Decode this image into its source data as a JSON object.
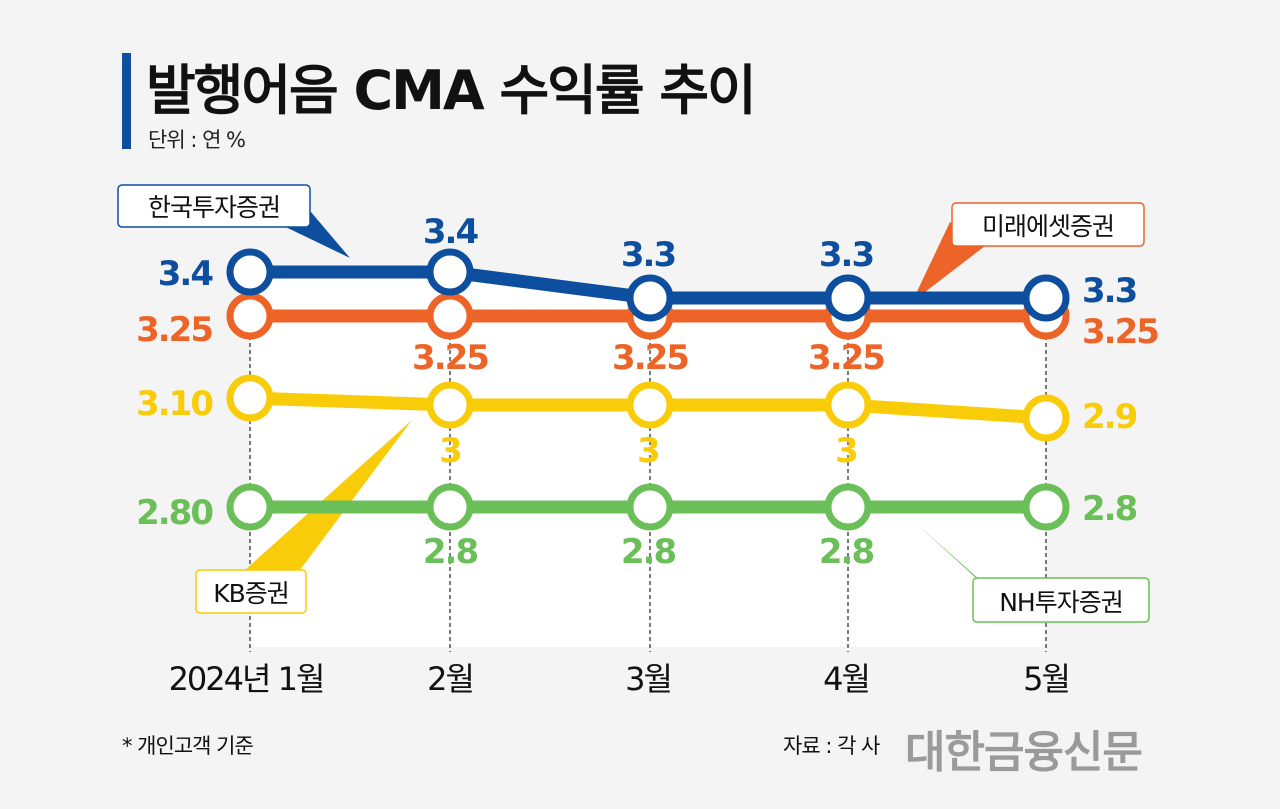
{
  "header": {
    "title": "발행어음 CMA 수익률 추이",
    "unit": "단위 : 연 %"
  },
  "footer": {
    "note": "* 개인고객 기준",
    "source": "자료 : 각 사",
    "logo": "대한금융신문"
  },
  "chart_data": {
    "type": "line",
    "title": "발행어음 CMA 수익률 추이",
    "ylabel": "단위 : 연 %",
    "categories": [
      "2024년 1월",
      "2월",
      "3월",
      "4월",
      "5월"
    ],
    "ylim": [
      2.6,
      3.5
    ],
    "grid": false,
    "series": [
      {
        "name": "한국투자증권",
        "color": "#0d4f9e",
        "values": [
          3.4,
          3.4,
          3.3,
          3.3,
          3.3
        ],
        "labels": [
          "3.4",
          "3.4",
          "3.3",
          "3.3",
          "3.3"
        ]
      },
      {
        "name": "미래에셋증권",
        "color": "#ec6428",
        "values": [
          3.25,
          3.25,
          3.25,
          3.25,
          3.25
        ],
        "labels": [
          "3.25",
          "3.25",
          "3.25",
          "3.25",
          "3.25"
        ]
      },
      {
        "name": "KB증권",
        "color": "#f9cc0a",
        "values": [
          3.1,
          3.0,
          3.0,
          3.0,
          2.9
        ],
        "labels": [
          "3.10",
          "3",
          "3",
          "3",
          "2.9"
        ]
      },
      {
        "name": "NH투자증권",
        "color": "#6bbf59",
        "values": [
          2.8,
          2.8,
          2.8,
          2.8,
          2.8
        ],
        "labels": [
          "2.80",
          "2.8",
          "2.8",
          "2.8",
          "2.8"
        ]
      }
    ]
  }
}
